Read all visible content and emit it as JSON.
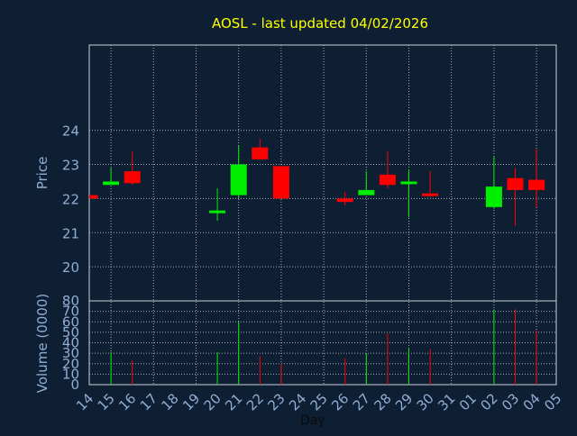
{
  "colors": {
    "background": "#0e1f33",
    "title": "#ffff00",
    "axis_text": "#8faed4",
    "frame": "#c8d0da",
    "grid": "#c8d0da",
    "up": "#00ee00",
    "down": "#ff0000"
  },
  "chart_data": [
    {
      "type": "candlestick",
      "title": "AOSL - last updated 04/02/2026",
      "ylabel": "Price",
      "ylim": [
        19.0,
        26.5
      ],
      "yticks": [
        20,
        21,
        22,
        23,
        24
      ],
      "x_tick_labels": [
        "14",
        "15",
        "16",
        "17",
        "18",
        "19",
        "20",
        "21",
        "22",
        "23",
        "24",
        "25",
        "26",
        "27",
        "28",
        "29",
        "30",
        "31",
        "01",
        "02",
        "03",
        "04",
        "05"
      ],
      "grid": true,
      "candles": [
        {
          "x": "14",
          "open": 22.1,
          "high": 22.1,
          "low": 22.0,
          "close": 22.0,
          "dir": "down"
        },
        {
          "x": "15",
          "open": 22.4,
          "high": 22.9,
          "low": 22.4,
          "close": 22.5,
          "dir": "up"
        },
        {
          "x": "16",
          "open": 22.8,
          "high": 23.4,
          "low": 22.4,
          "close": 22.45,
          "dir": "down"
        },
        {
          "x": "20",
          "open": 21.6,
          "high": 22.3,
          "low": 21.35,
          "close": 21.65,
          "dir": "up"
        },
        {
          "x": "21",
          "open": 22.1,
          "high": 23.55,
          "low": 22.0,
          "close": 23.0,
          "dir": "up"
        },
        {
          "x": "22",
          "open": 23.5,
          "high": 23.75,
          "low": 23.15,
          "close": 23.15,
          "dir": "down"
        },
        {
          "x": "23",
          "open": 22.95,
          "high": 22.95,
          "low": 22.0,
          "close": 22.0,
          "dir": "down"
        },
        {
          "x": "26",
          "open": 22.0,
          "high": 22.2,
          "low": 21.8,
          "close": 21.9,
          "dir": "down"
        },
        {
          "x": "27",
          "open": 22.1,
          "high": 22.8,
          "low": 22.1,
          "close": 22.25,
          "dir": "up"
        },
        {
          "x": "28",
          "open": 22.7,
          "high": 23.4,
          "low": 22.3,
          "close": 22.4,
          "dir": "down"
        },
        {
          "x": "29",
          "open": 22.45,
          "high": 22.85,
          "low": 21.45,
          "close": 22.5,
          "dir": "up"
        },
        {
          "x": "30",
          "open": 22.15,
          "high": 22.8,
          "low": 22.05,
          "close": 22.1,
          "dir": "down"
        },
        {
          "x": "02",
          "open": 21.75,
          "high": 23.25,
          "low": 21.7,
          "close": 22.35,
          "dir": "up"
        },
        {
          "x": "03",
          "open": 22.6,
          "high": 22.9,
          "low": 21.2,
          "close": 22.25,
          "dir": "down"
        },
        {
          "x": "04",
          "open": 22.55,
          "high": 23.45,
          "low": 21.75,
          "close": 22.25,
          "dir": "down"
        }
      ]
    },
    {
      "type": "bar",
      "ylabel": "Volume (0000)",
      "xlabel": "Day",
      "ylim": [
        0,
        80
      ],
      "yticks": [
        0,
        10,
        20,
        30,
        40,
        50,
        60,
        70,
        80
      ],
      "categories": [
        "15",
        "16",
        "20",
        "21",
        "22",
        "23",
        "26",
        "27",
        "28",
        "29",
        "30",
        "02",
        "03",
        "04"
      ],
      "values": [
        31,
        23,
        31,
        60,
        27,
        20,
        25,
        30,
        49,
        35,
        34,
        72,
        72,
        52
      ],
      "dirs": [
        "up",
        "down",
        "up",
        "up",
        "down",
        "down",
        "down",
        "up",
        "down",
        "up",
        "down",
        "up",
        "down",
        "down"
      ]
    }
  ]
}
